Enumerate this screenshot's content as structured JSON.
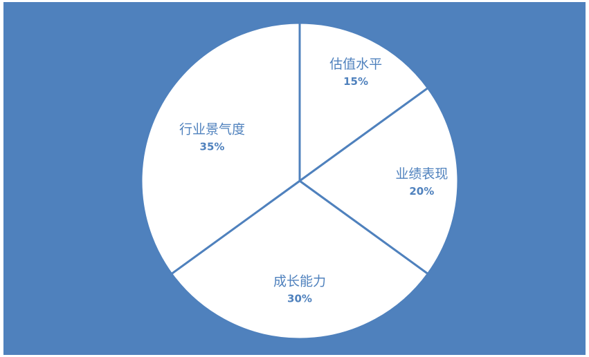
{
  "chart_data": {
    "type": "pie",
    "slices": [
      {
        "label": "估值水平",
        "value": 15,
        "display": "15%"
      },
      {
        "label": "业绩表现",
        "value": 20,
        "display": "20%"
      },
      {
        "label": "成长能力",
        "value": 30,
        "display": "30%"
      },
      {
        "label": "行业景气度",
        "value": 35,
        "display": "35%"
      }
    ],
    "colors": {
      "background": "#4f81bd",
      "slice_fill": "#ffffff",
      "slice_stroke": "#4f81bd",
      "label_color": "#4f81bd"
    }
  }
}
